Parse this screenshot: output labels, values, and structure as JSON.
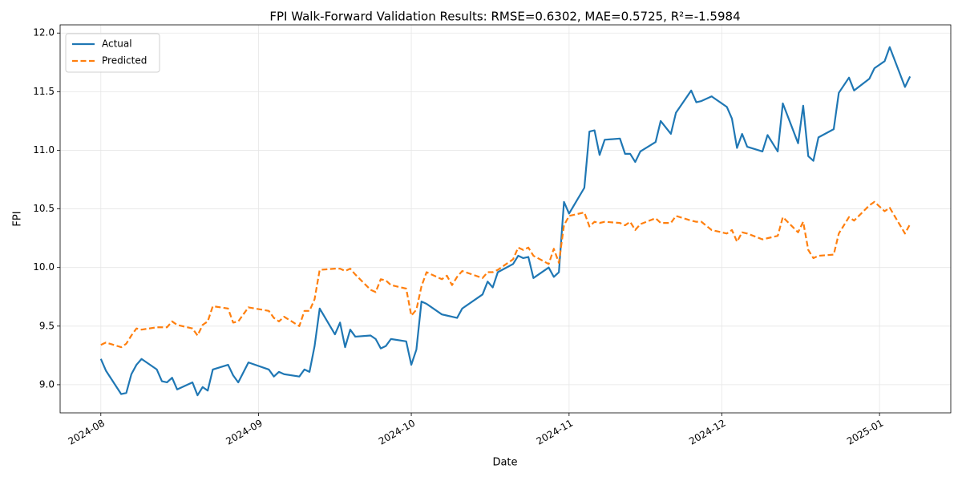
{
  "chart_data": {
    "type": "line",
    "title": "FPI Walk-Forward Validation Results: RMSE=0.6302, MAE=0.5725, R²=-1.5984",
    "x_label": "Date",
    "y_label": "FPI",
    "x": [
      "2024-08-01",
      "2024-08-02",
      "2024-08-05",
      "2024-08-06",
      "2024-08-07",
      "2024-08-08",
      "2024-08-09",
      "2024-08-12",
      "2024-08-13",
      "2024-08-14",
      "2024-08-15",
      "2024-08-16",
      "2024-08-19",
      "2024-08-20",
      "2024-08-21",
      "2024-08-22",
      "2024-08-23",
      "2024-08-26",
      "2024-08-27",
      "2024-08-28",
      "2024-08-30",
      "2024-09-03",
      "2024-09-04",
      "2024-09-05",
      "2024-09-06",
      "2024-09-09",
      "2024-09-10",
      "2024-09-11",
      "2024-09-12",
      "2024-09-13",
      "2024-09-16",
      "2024-09-17",
      "2024-09-18",
      "2024-09-19",
      "2024-09-20",
      "2024-09-23",
      "2024-09-24",
      "2024-09-25",
      "2024-09-26",
      "2024-09-27",
      "2024-09-30",
      "2024-10-01",
      "2024-10-02",
      "2024-10-03",
      "2024-10-04",
      "2024-10-07",
      "2024-10-08",
      "2024-10-09",
      "2024-10-10",
      "2024-10-11",
      "2024-10-15",
      "2024-10-16",
      "2024-10-17",
      "2024-10-18",
      "2024-10-21",
      "2024-10-22",
      "2024-10-23",
      "2024-10-24",
      "2024-10-25",
      "2024-10-28",
      "2024-10-29",
      "2024-10-30",
      "2024-10-31",
      "2024-11-01",
      "2024-11-04",
      "2024-11-05",
      "2024-11-06",
      "2024-11-07",
      "2024-11-08",
      "2024-11-11",
      "2024-11-12",
      "2024-11-13",
      "2024-11-14",
      "2024-11-15",
      "2024-11-18",
      "2024-11-19",
      "2024-11-21",
      "2024-11-22",
      "2024-11-25",
      "2024-11-26",
      "2024-11-27",
      "2024-11-29",
      "2024-12-02",
      "2024-12-03",
      "2024-12-04",
      "2024-12-05",
      "2024-12-06",
      "2024-12-09",
      "2024-12-10",
      "2024-12-12",
      "2024-12-13",
      "2024-12-16",
      "2024-12-17",
      "2024-12-18",
      "2024-12-19",
      "2024-12-20",
      "2024-12-23",
      "2024-12-24",
      "2024-12-26",
      "2024-12-27",
      "2024-12-30",
      "2024-12-31",
      "2025-01-02",
      "2025-01-03",
      "2025-01-06",
      "2025-01-07"
    ],
    "series": [
      {
        "name": "Actual",
        "color": "#1f77b4",
        "dashed": false,
        "values": [
          9.22,
          9.12,
          8.92,
          8.93,
          9.09,
          9.17,
          9.22,
          9.13,
          9.03,
          9.02,
          9.06,
          8.96,
          9.02,
          8.91,
          8.98,
          8.95,
          9.13,
          9.17,
          9.08,
          9.02,
          9.19,
          9.13,
          9.07,
          9.11,
          9.09,
          9.07,
          9.13,
          9.11,
          9.33,
          9.65,
          9.43,
          9.53,
          9.32,
          9.47,
          9.41,
          9.42,
          9.39,
          9.31,
          9.33,
          9.39,
          9.37,
          9.17,
          9.3,
          9.71,
          9.69,
          9.6,
          9.59,
          9.58,
          9.57,
          9.65,
          9.77,
          9.88,
          9.83,
          9.96,
          10.03,
          10.1,
          10.08,
          10.09,
          9.91,
          10.0,
          9.92,
          9.96,
          10.56,
          10.46,
          10.68,
          11.16,
          11.17,
          10.96,
          11.09,
          11.1,
          10.97,
          10.97,
          10.9,
          10.99,
          11.07,
          11.25,
          11.14,
          11.32,
          11.51,
          11.41,
          11.42,
          11.46,
          11.37,
          11.27,
          11.02,
          11.14,
          11.03,
          10.99,
          11.13,
          10.99,
          11.4,
          11.06,
          11.38,
          10.95,
          10.91,
          11.11,
          11.18,
          11.49,
          11.62,
          11.51,
          11.61,
          11.7,
          11.76,
          11.88,
          11.54,
          11.63
        ]
      },
      {
        "name": "Predicted",
        "color": "#ff7f0e",
        "dashed": true,
        "values": [
          9.34,
          9.36,
          9.32,
          9.35,
          9.42,
          9.48,
          9.47,
          9.49,
          9.49,
          9.49,
          9.54,
          9.51,
          9.48,
          9.42,
          9.51,
          9.54,
          9.67,
          9.65,
          9.53,
          9.54,
          9.66,
          9.63,
          9.57,
          9.54,
          9.58,
          9.5,
          9.63,
          9.63,
          9.73,
          9.98,
          9.99,
          9.99,
          9.97,
          9.99,
          9.94,
          9.81,
          9.79,
          9.9,
          9.89,
          9.85,
          9.82,
          9.59,
          9.64,
          9.84,
          9.96,
          9.9,
          9.93,
          9.85,
          9.92,
          9.97,
          9.91,
          9.96,
          9.96,
          9.98,
          10.07,
          10.17,
          10.15,
          10.17,
          10.1,
          10.03,
          10.16,
          10.04,
          10.36,
          10.44,
          10.47,
          10.35,
          10.39,
          10.38,
          10.39,
          10.38,
          10.36,
          10.39,
          10.32,
          10.37,
          10.42,
          10.38,
          10.38,
          10.44,
          10.4,
          10.39,
          10.39,
          10.32,
          10.29,
          10.32,
          10.22,
          10.3,
          10.29,
          10.24,
          10.25,
          10.27,
          10.43,
          10.3,
          10.39,
          10.15,
          10.08,
          10.1,
          10.11,
          10.29,
          10.43,
          10.4,
          10.53,
          10.56,
          10.48,
          10.51,
          10.29,
          10.37
        ]
      }
    ],
    "xlim": [
      "2024-07-24",
      "2025-01-15"
    ],
    "xticks": [
      {
        "value": "2024-08-01",
        "label": "2024-08"
      },
      {
        "value": "2024-09-01",
        "label": "2024-09"
      },
      {
        "value": "2024-10-01",
        "label": "2024-10"
      },
      {
        "value": "2024-11-01",
        "label": "2024-11"
      },
      {
        "value": "2024-12-01",
        "label": "2024-12"
      },
      {
        "value": "2025-01-01",
        "label": "2025-01"
      }
    ],
    "ylim": [
      8.76,
      12.07
    ],
    "yticks": [
      {
        "value": 9,
        "label": "9.0"
      },
      9.5,
      {
        "value": 10,
        "label": "10.0"
      },
      10.5,
      {
        "value": 11,
        "label": "11.0"
      },
      11.5,
      {
        "value": 12,
        "label": "12.0"
      }
    ],
    "grid": true,
    "legend": "upper left"
  }
}
